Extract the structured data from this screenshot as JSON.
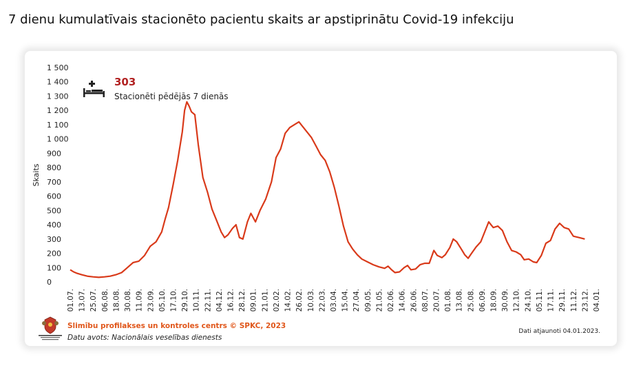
{
  "title": "7 dienu kumulatīvais stacionēto pacientu skaits ar apstiprinātu Covid-19 infekciju",
  "kpi": {
    "value": "303",
    "label": "Stacionēti pēdējās 7 dienās",
    "icon": "hospital-bed-icon"
  },
  "footer": {
    "org": "Slimību profilakses un kontroles centrs © SPKC, 2023",
    "source": "Datu avots: Nacionālais veselības dienests",
    "updated": "Dati atjaunoti 04.01.2023."
  },
  "colors": {
    "line": "#d93a1a",
    "kpi": "#b22222",
    "org_text": "#e0561a"
  },
  "chart_data": {
    "type": "line",
    "ylabel": "Skaits",
    "ylim": [
      0,
      1500
    ],
    "yticks": [
      0,
      100,
      200,
      300,
      400,
      500,
      600,
      700,
      800,
      900,
      1000,
      1100,
      1200,
      1300,
      1400,
      1500
    ],
    "ytick_labels": [
      "0",
      "100",
      "200",
      "300",
      "400",
      "500",
      "600",
      "700",
      "800",
      "900",
      "1 000",
      "1 100",
      "1 200",
      "1 300",
      "1 400",
      "1 500"
    ],
    "grid": false,
    "xticks": [
      "01.07.",
      "13.07.",
      "25.07.",
      "06.08.",
      "18.08.",
      "30.08.",
      "11.09.",
      "23.09.",
      "05.10.",
      "17.10.",
      "29.10.",
      "10.11.",
      "22.11.",
      "04.12.",
      "16.12.",
      "28.12.",
      "09.01.",
      "21.01.",
      "02.02.",
      "14.02.",
      "26.02.",
      "10.03.",
      "22.03.",
      "03.04.",
      "15.04.",
      "27.04.",
      "09.05.",
      "21.05.",
      "02.06.",
      "14.06.",
      "26.06.",
      "08.07.",
      "20.07.",
      "01.08.",
      "13.08.",
      "25.08.",
      "06.09.",
      "18.09.",
      "30.09.",
      "12.10.",
      "24.10.",
      "05.11.",
      "17.11.",
      "29.11.",
      "11.12.",
      "23.12.",
      "04.01."
    ],
    "points": [
      [
        0,
        85
      ],
      [
        0.3,
        70
      ],
      [
        0.6,
        60
      ],
      [
        1,
        50
      ],
      [
        1.5,
        40
      ],
      [
        2,
        35
      ],
      [
        2.5,
        32
      ],
      [
        3,
        35
      ],
      [
        3.5,
        40
      ],
      [
        4,
        50
      ],
      [
        4.5,
        65
      ],
      [
        5,
        100
      ],
      [
        5.5,
        135
      ],
      [
        6,
        145
      ],
      [
        6.5,
        185
      ],
      [
        7,
        250
      ],
      [
        7.5,
        280
      ],
      [
        8,
        350
      ],
      [
        8.3,
        440
      ],
      [
        8.6,
        520
      ],
      [
        9,
        680
      ],
      [
        9.4,
        850
      ],
      [
        9.8,
        1050
      ],
      [
        10,
        1200
      ],
      [
        10.2,
        1260
      ],
      [
        10.4,
        1230
      ],
      [
        10.6,
        1190
      ],
      [
        10.9,
        1170
      ],
      [
        11.2,
        960
      ],
      [
        11.6,
        730
      ],
      [
        12,
        630
      ],
      [
        12.4,
        510
      ],
      [
        12.8,
        430
      ],
      [
        13.2,
        350
      ],
      [
        13.5,
        310
      ],
      [
        13.8,
        330
      ],
      [
        14.2,
        375
      ],
      [
        14.5,
        400
      ],
      [
        14.8,
        310
      ],
      [
        15.1,
        300
      ],
      [
        15.5,
        420
      ],
      [
        15.8,
        480
      ],
      [
        16.2,
        420
      ],
      [
        16.6,
        500
      ],
      [
        17.1,
        580
      ],
      [
        17.6,
        700
      ],
      [
        18,
        870
      ],
      [
        18.4,
        930
      ],
      [
        18.8,
        1040
      ],
      [
        19.2,
        1080
      ],
      [
        19.6,
        1100
      ],
      [
        20,
        1120
      ],
      [
        20.4,
        1080
      ],
      [
        20.8,
        1040
      ],
      [
        21.1,
        1010
      ],
      [
        21.5,
        950
      ],
      [
        21.9,
        890
      ],
      [
        22.3,
        850
      ],
      [
        22.7,
        770
      ],
      [
        23.1,
        660
      ],
      [
        23.5,
        530
      ],
      [
        23.9,
        390
      ],
      [
        24.3,
        280
      ],
      [
        24.7,
        230
      ],
      [
        25.1,
        190
      ],
      [
        25.5,
        160
      ],
      [
        26,
        140
      ],
      [
        26.5,
        120
      ],
      [
        27,
        105
      ],
      [
        27.5,
        95
      ],
      [
        27.8,
        110
      ],
      [
        28.1,
        85
      ],
      [
        28.4,
        65
      ],
      [
        28.8,
        70
      ],
      [
        29.2,
        100
      ],
      [
        29.5,
        115
      ],
      [
        29.8,
        85
      ],
      [
        30.2,
        90
      ],
      [
        30.6,
        120
      ],
      [
        31,
        130
      ],
      [
        31.4,
        130
      ],
      [
        31.8,
        220
      ],
      [
        32.1,
        185
      ],
      [
        32.5,
        170
      ],
      [
        32.8,
        190
      ],
      [
        33.2,
        240
      ],
      [
        33.5,
        300
      ],
      [
        33.8,
        280
      ],
      [
        34.2,
        230
      ],
      [
        34.5,
        190
      ],
      [
        34.8,
        165
      ],
      [
        35.1,
        200
      ],
      [
        35.5,
        245
      ],
      [
        35.9,
        280
      ],
      [
        36.3,
        360
      ],
      [
        36.6,
        420
      ],
      [
        37,
        380
      ],
      [
        37.4,
        390
      ],
      [
        37.8,
        360
      ],
      [
        38.2,
        280
      ],
      [
        38.6,
        220
      ],
      [
        39,
        210
      ],
      [
        39.4,
        190
      ],
      [
        39.7,
        155
      ],
      [
        40.1,
        160
      ],
      [
        40.5,
        140
      ],
      [
        40.8,
        135
      ],
      [
        41.2,
        185
      ],
      [
        41.6,
        270
      ],
      [
        42,
        290
      ],
      [
        42.4,
        370
      ],
      [
        42.8,
        410
      ],
      [
        43.2,
        380
      ],
      [
        43.6,
        370
      ],
      [
        44,
        320
      ],
      [
        44.5,
        310
      ],
      [
        45,
        300
      ]
    ]
  }
}
